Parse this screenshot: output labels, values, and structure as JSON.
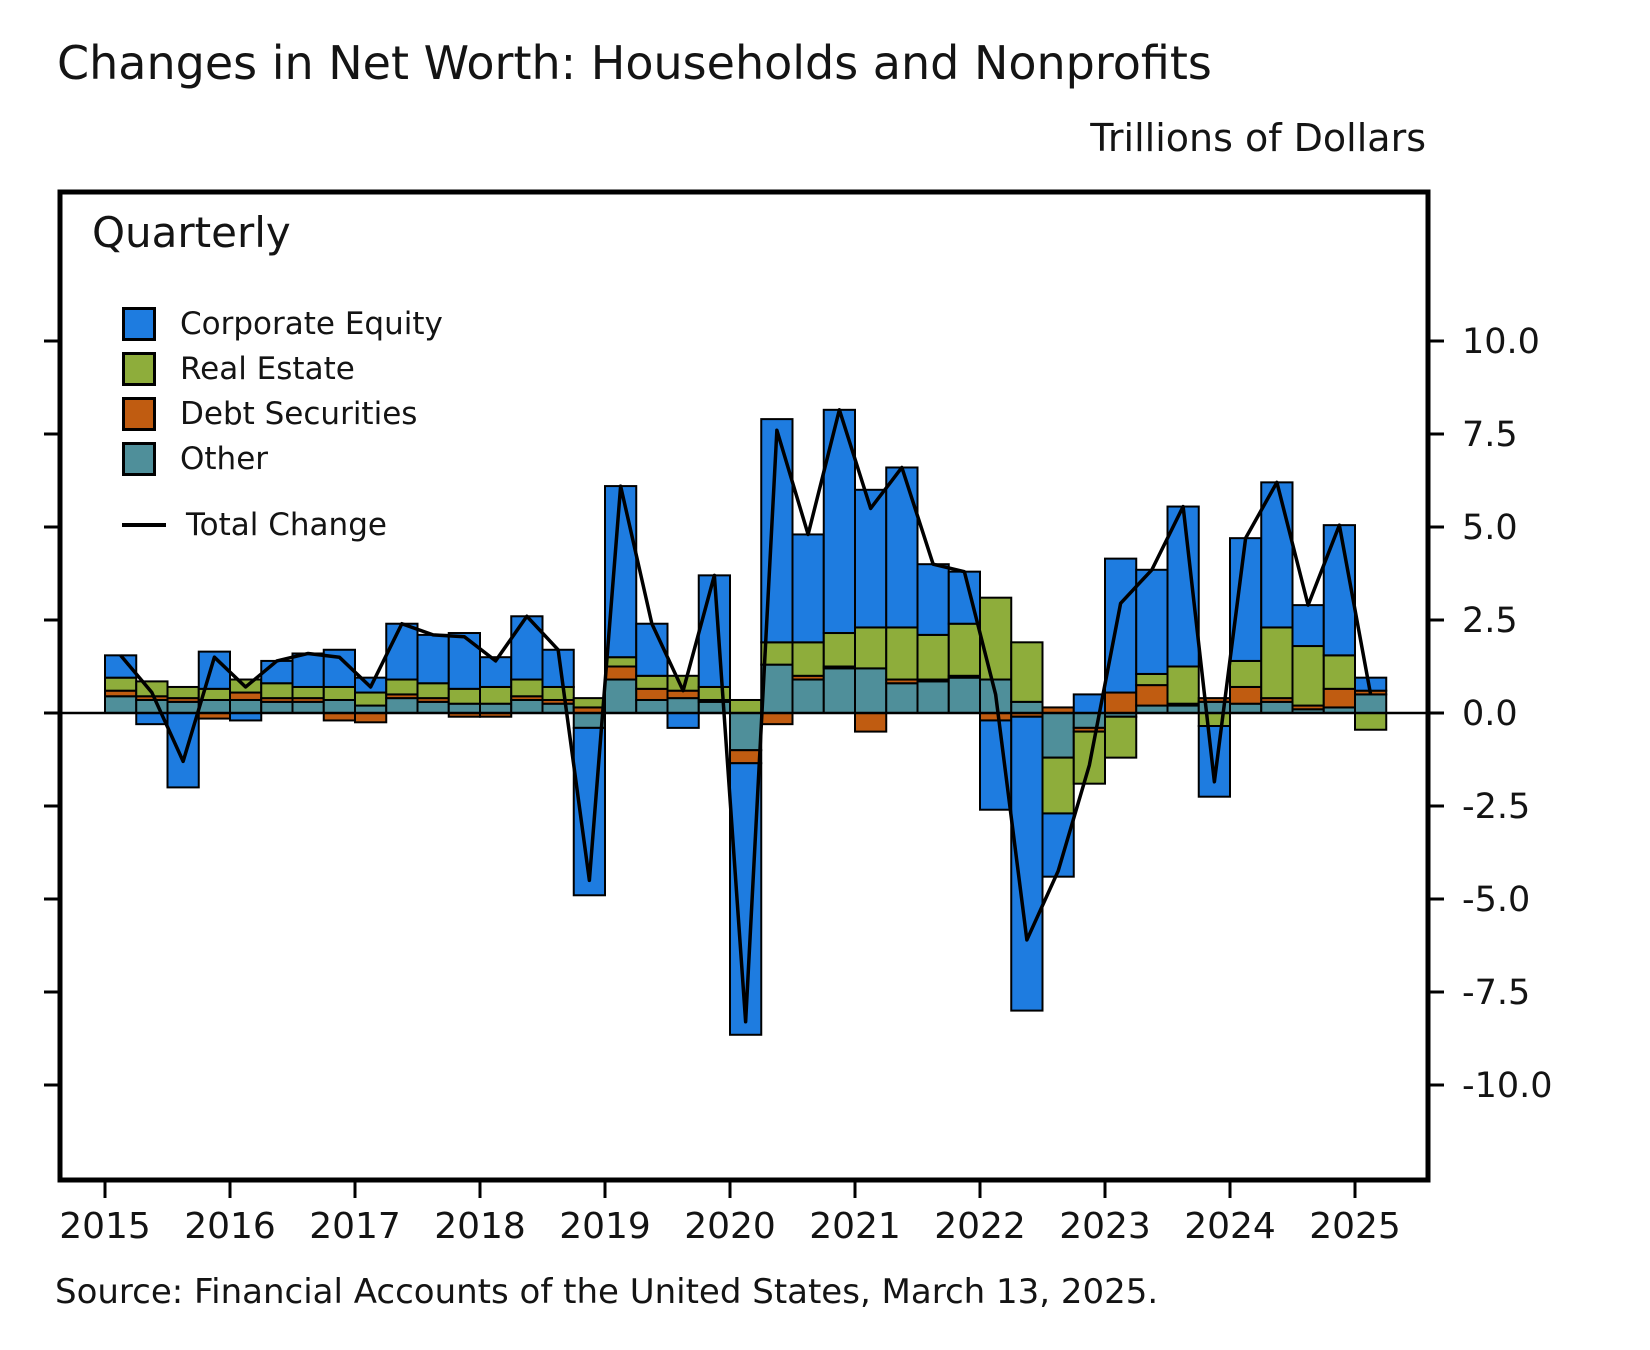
{
  "page": {
    "title": "Changes in Net Worth: Households and Nonprofits",
    "units_label": "Trillions of Dollars",
    "frequency_label": "Quarterly",
    "source": "Source: Financial Accounts of the United States, March 13, 2025."
  },
  "chart_data": {
    "type": "bar",
    "stacked": true,
    "title": "Changes in Net Worth: Households and Nonprofits",
    "xlabel": "",
    "ylabel": "Trillions of Dollars",
    "ylim": [
      -12.5,
      13.5
    ],
    "grid": false,
    "legend_position": "upper-left-inside",
    "y_ticks": [
      "10.0",
      "7.5",
      "5.0",
      "2.5",
      "0.0",
      "-2.5",
      "-5.0",
      "-7.5",
      "-10.0"
    ],
    "x_tick_labels": [
      "2015",
      "2016",
      "2017",
      "2018",
      "2019",
      "2020",
      "2021",
      "2022",
      "2023",
      "2024",
      "2025"
    ],
    "categories": [
      "2015 Q1",
      "2015 Q2",
      "2015 Q3",
      "2015 Q4",
      "2016 Q1",
      "2016 Q2",
      "2016 Q3",
      "2016 Q4",
      "2017 Q1",
      "2017 Q2",
      "2017 Q3",
      "2017 Q4",
      "2018 Q1",
      "2018 Q2",
      "2018 Q3",
      "2018 Q4",
      "2019 Q1",
      "2019 Q2",
      "2019 Q3",
      "2019 Q4",
      "2020 Q1",
      "2020 Q2",
      "2020 Q3",
      "2020 Q4",
      "2021 Q1",
      "2021 Q2",
      "2021 Q3",
      "2021 Q4",
      "2022 Q1",
      "2022 Q2",
      "2022 Q3",
      "2022 Q4",
      "2023 Q1",
      "2023 Q2",
      "2023 Q3",
      "2023 Q4",
      "2024 Q1",
      "2024 Q2",
      "2024 Q3",
      "2024 Q4",
      "2025 Q1"
    ],
    "series": [
      {
        "name": "Corporate Equity",
        "color": "#1e7ce0",
        "values": [
          0.6,
          -0.3,
          -2.0,
          1.0,
          -0.2,
          0.6,
          0.9,
          1.0,
          0.4,
          1.5,
          1.3,
          1.5,
          0.8,
          1.7,
          1.0,
          -4.5,
          4.6,
          1.4,
          -0.4,
          3.0,
          -7.3,
          6.0,
          2.9,
          6.0,
          3.7,
          4.3,
          1.9,
          1.4,
          -2.4,
          -7.9,
          -1.7,
          0.5,
          3.6,
          2.8,
          4.3,
          -1.9,
          3.3,
          3.9,
          1.1,
          3.5,
          0.35
        ]
      },
      {
        "name": "Real Estate",
        "color": "#8ead3b",
        "values": [
          0.35,
          0.4,
          0.3,
          0.3,
          0.35,
          0.4,
          0.3,
          0.35,
          0.35,
          0.4,
          0.4,
          0.4,
          0.45,
          0.45,
          0.35,
          0.25,
          0.25,
          0.35,
          0.4,
          0.35,
          0.35,
          0.6,
          0.9,
          0.9,
          1.1,
          1.4,
          1.2,
          1.4,
          2.2,
          1.6,
          -1.5,
          -1.4,
          -1.1,
          0.3,
          1.0,
          -0.35,
          0.7,
          1.9,
          1.6,
          0.9,
          -0.45
        ]
      },
      {
        "name": "Debt Securities",
        "color": "#c05c11",
        "values": [
          0.15,
          0.1,
          0.1,
          -0.15,
          0.2,
          0.1,
          0.1,
          -0.2,
          -0.25,
          0.1,
          0.1,
          -0.1,
          -0.1,
          0.1,
          0.1,
          0.15,
          0.35,
          0.3,
          0.2,
          0.05,
          -0.35,
          -0.3,
          0.1,
          0.05,
          -0.5,
          0.1,
          0.05,
          0.05,
          -0.2,
          -0.1,
          0.15,
          -0.1,
          0.55,
          0.55,
          0.05,
          0.1,
          0.45,
          0.1,
          0.1,
          0.5,
          0.1
        ]
      },
      {
        "name": "Other",
        "color": "#4f8f9a",
        "values": [
          0.45,
          0.35,
          0.3,
          0.35,
          0.35,
          0.3,
          0.3,
          0.35,
          0.2,
          0.4,
          0.3,
          0.25,
          0.25,
          0.35,
          0.25,
          -0.4,
          0.9,
          0.35,
          0.4,
          0.3,
          -1.0,
          1.3,
          0.9,
          1.2,
          1.2,
          0.8,
          0.85,
          0.95,
          0.9,
          0.3,
          -1.2,
          -0.4,
          -0.1,
          0.2,
          0.2,
          0.3,
          0.25,
          0.3,
          0.1,
          0.15,
          0.5
        ]
      }
    ],
    "total_series": {
      "name": "Total Change",
      "color": "#000000",
      "values": [
        1.55,
        0.55,
        -1.3,
        1.5,
        0.7,
        1.4,
        1.6,
        1.5,
        0.7,
        2.4,
        2.1,
        2.05,
        1.4,
        2.6,
        1.7,
        -4.5,
        6.1,
        2.4,
        0.6,
        3.7,
        -8.3,
        7.6,
        4.8,
        8.15,
        5.5,
        6.6,
        4.0,
        3.8,
        0.5,
        -6.1,
        -4.25,
        -1.4,
        2.95,
        3.85,
        5.55,
        -1.85,
        4.7,
        6.2,
        2.9,
        5.05,
        0.5
      ]
    }
  }
}
